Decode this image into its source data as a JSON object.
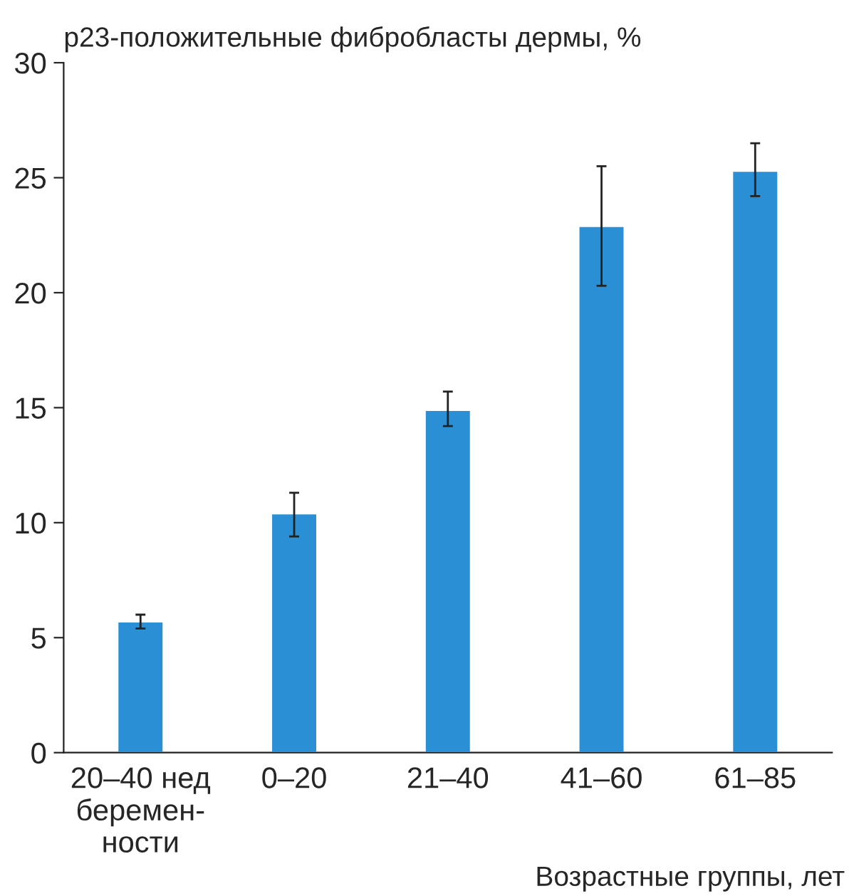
{
  "chart_data": {
    "type": "bar",
    "ylabel": "p23-положительные фибробласты дермы, %",
    "xlabel": "Возрастные группы, лет",
    "categories": [
      "20–40 нед\nберемен-\nности",
      "0–20",
      "21–40",
      "41–60",
      "61–85"
    ],
    "values": [
      5.7,
      10.4,
      14.9,
      22.9,
      25.3
    ],
    "errors": [
      [
        5.4,
        6.0
      ],
      [
        9.4,
        11.3
      ],
      [
        14.2,
        15.7
      ],
      [
        20.3,
        25.5
      ],
      [
        24.2,
        26.5
      ]
    ],
    "color": "#2a8fd4",
    "ylim": [
      0,
      30
    ],
    "yticks": [
      0,
      5,
      10,
      15,
      20,
      25,
      30
    ],
    "grid": false,
    "legend": false
  }
}
